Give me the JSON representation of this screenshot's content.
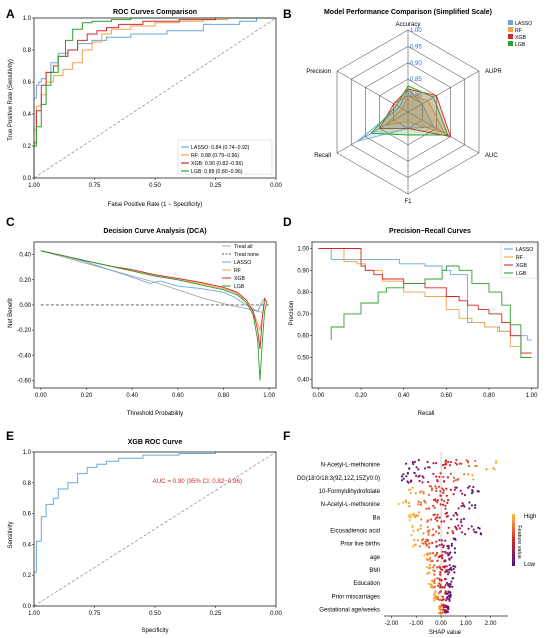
{
  "panels": {
    "A": {
      "label": "A",
      "title": "ROC Curves Comparison",
      "xlabel": "False Positive Rate (1 − Specificity)",
      "ylabel": "True Positive Rate (Sensitivity)"
    },
    "B": {
      "label": "B",
      "title": "Model Performance Comparison (Simplified Scale)"
    },
    "C": {
      "label": "C",
      "title": "Decision Curve Analysis (DCA)",
      "xlabel": "Threshold Probability",
      "ylabel": "Net Benefit"
    },
    "D": {
      "label": "D",
      "title": "Precision−Recall Curves",
      "xlabel": "Recall",
      "ylabel": "Precision"
    },
    "E": {
      "label": "E",
      "title": "XGB ROC Curve",
      "xlabel": "Specificity",
      "ylabel": "Sensitivity",
      "annotation": "AUC = 0.90 (95% CI: 0.82−0.96)"
    },
    "F": {
      "label": "F",
      "xlabel": "SHAP value",
      "colorbar_title": "Feature value",
      "colorbar_high": "High",
      "colorbar_low": "Low"
    }
  },
  "colors": {
    "LASSO": "#6aa9d8",
    "RF": "#f0a24c",
    "XGB": "#d62728",
    "LGB": "#2ca02c",
    "ref": "#888888"
  },
  "chart_data": [
    {
      "id": "A",
      "type": "line",
      "xlim": [
        1.0,
        0.0
      ],
      "ylim": [
        0,
        1
      ],
      "xticks": [
        "1.00",
        "0.75",
        "0.50",
        "0.25",
        "0.00"
      ],
      "yticks": [
        "0.0",
        "0.2",
        "0.4",
        "0.6",
        "0.8",
        "1.0"
      ],
      "legend_position": "bottom-right",
      "legend": [
        "LASSO: 0.84 (0.74−0.92)",
        "RF: 0.88 (0.79−0.96)",
        "XGB: 0.90 (0.82−0.96)",
        "LGB: 0.89 (0.80−0.96)"
      ],
      "series": [
        {
          "name": "LASSO",
          "x": [
            1,
            0.99,
            0.98,
            0.97,
            0.95,
            0.93,
            0.9,
            0.86,
            0.82,
            0.76,
            0.7,
            0.6,
            0.45,
            0.3,
            0.15,
            0.08,
            0
          ],
          "y": [
            0,
            0.5,
            0.58,
            0.6,
            0.62,
            0.66,
            0.72,
            0.78,
            0.8,
            0.84,
            0.86,
            0.88,
            0.9,
            0.92,
            0.96,
            0.98,
            1
          ]
        },
        {
          "name": "RF",
          "x": [
            1,
            0.99,
            0.97,
            0.95,
            0.92,
            0.88,
            0.84,
            0.8,
            0.76,
            0.72,
            0.68,
            0.6,
            0.5,
            0.4,
            0.3,
            0.2,
            0.1,
            0
          ],
          "y": [
            0,
            0.3,
            0.45,
            0.52,
            0.6,
            0.64,
            0.68,
            0.72,
            0.8,
            0.85,
            0.9,
            0.93,
            0.95,
            0.97,
            0.98,
            0.99,
            1,
            1
          ]
        },
        {
          "name": "XGB",
          "x": [
            1,
            0.99,
            0.97,
            0.95,
            0.92,
            0.9,
            0.86,
            0.82,
            0.78,
            0.74,
            0.7,
            0.65,
            0.55,
            0.4,
            0.25,
            0.1,
            0
          ],
          "y": [
            0,
            0.22,
            0.42,
            0.58,
            0.66,
            0.7,
            0.76,
            0.8,
            0.86,
            0.9,
            0.92,
            0.94,
            0.96,
            0.98,
            0.99,
            1,
            1
          ]
        },
        {
          "name": "LGB",
          "x": [
            1,
            0.99,
            0.97,
            0.95,
            0.93,
            0.9,
            0.87,
            0.84,
            0.8,
            0.76,
            0.72,
            0.68,
            0.6,
            0.5,
            0.3,
            0.1,
            0
          ],
          "y": [
            0,
            0.2,
            0.32,
            0.46,
            0.58,
            0.66,
            0.76,
            0.86,
            0.93,
            0.97,
            0.98,
            0.98,
            0.99,
            1,
            1,
            1,
            1
          ]
        }
      ]
    },
    {
      "id": "B",
      "type": "radar",
      "axes": [
        "Accuracy",
        "AUPR",
        "AUC",
        "F1",
        "Recall",
        "Precision"
      ],
      "rings": [
        "0.80",
        "0.85",
        "0.90",
        "0.95",
        "1.00"
      ],
      "rlim": [
        0.75,
        1.0
      ],
      "legend_position": "top-right",
      "series": [
        {
          "name": "LASSO",
          "values": [
            0.82,
            0.8,
            0.84,
            0.8,
            0.93,
            0.78
          ]
        },
        {
          "name": "RF",
          "values": [
            0.8,
            0.82,
            0.88,
            0.78,
            0.83,
            0.77
          ]
        },
        {
          "name": "XGB",
          "values": [
            0.82,
            0.85,
            0.9,
            0.8,
            0.85,
            0.8
          ]
        },
        {
          "name": "LGB",
          "values": [
            0.83,
            0.84,
            0.89,
            0.82,
            0.88,
            0.79
          ]
        }
      ]
    },
    {
      "id": "C",
      "type": "line",
      "xlim": [
        -0.03,
        1.03
      ],
      "ylim": [
        -0.66,
        0.5
      ],
      "xticks": [
        "0.00",
        "0.20",
        "0.40",
        "0.60",
        "0.80",
        "1.00"
      ],
      "yticks": [
        "0.40",
        "0.20",
        "0.00",
        "-0.20",
        "-0.40",
        "-0.60"
      ],
      "legend_position": "top-right",
      "series": [
        {
          "name": "Treat all",
          "x": [
            0,
            0.1,
            0.2,
            0.3,
            0.4,
            0.5,
            0.6,
            0.7,
            0.8,
            0.85,
            0.9,
            0.95,
            0.97
          ],
          "y": [
            0.43,
            0.38,
            0.33,
            0.28,
            0.23,
            0.18,
            0.12,
            0.06,
            0.01,
            -0.01,
            -0.03,
            -0.05,
            -0.06
          ]
        },
        {
          "name": "Treat none",
          "x": [
            0,
            1
          ],
          "y": [
            0,
            0
          ]
        },
        {
          "name": "LASSO",
          "x": [
            0,
            0.1,
            0.2,
            0.3,
            0.4,
            0.48,
            0.52,
            0.6,
            0.7,
            0.8,
            0.85,
            0.88,
            0.9,
            0.93,
            0.95,
            0.97,
            0.98
          ],
          "y": [
            0.43,
            0.39,
            0.34,
            0.28,
            0.22,
            0.17,
            0.19,
            0.15,
            0.13,
            0.1,
            0.06,
            0.02,
            0,
            -0.03,
            -0.05,
            0.03,
            0.05
          ]
        },
        {
          "name": "RF",
          "x": [
            0,
            0.1,
            0.2,
            0.3,
            0.4,
            0.5,
            0.6,
            0.7,
            0.8,
            0.85,
            0.88,
            0.9,
            0.92,
            0.94,
            0.96,
            0.97,
            0.98
          ],
          "y": [
            0.43,
            0.39,
            0.35,
            0.31,
            0.27,
            0.23,
            0.2,
            0.17,
            0.13,
            0.1,
            0.06,
            0.02,
            -0.03,
            -0.1,
            -0.2,
            -0.1,
            0.02
          ]
        },
        {
          "name": "XGB",
          "x": [
            0,
            0.1,
            0.2,
            0.3,
            0.4,
            0.5,
            0.6,
            0.7,
            0.8,
            0.86,
            0.9,
            0.93,
            0.95,
            0.96,
            0.97,
            0.98,
            0.99
          ],
          "y": [
            0.43,
            0.39,
            0.35,
            0.31,
            0.28,
            0.24,
            0.21,
            0.18,
            0.14,
            0.1,
            0.04,
            -0.05,
            -0.2,
            -0.35,
            -0.1,
            0.05,
            0.02
          ]
        },
        {
          "name": "LGB",
          "x": [
            0,
            0.1,
            0.2,
            0.3,
            0.4,
            0.5,
            0.6,
            0.7,
            0.8,
            0.86,
            0.9,
            0.93,
            0.95,
            0.96,
            0.97,
            0.98,
            0.99
          ],
          "y": [
            0.43,
            0.39,
            0.35,
            0.31,
            0.27,
            0.23,
            0.2,
            0.16,
            0.12,
            0.08,
            0.02,
            -0.08,
            -0.28,
            -0.6,
            -0.3,
            -0.05,
            0.03
          ]
        }
      ]
    },
    {
      "id": "D",
      "type": "line",
      "xlim": [
        -0.03,
        1.03
      ],
      "ylim": [
        0.36,
        1.03
      ],
      "xticks": [
        "0.00",
        "0.20",
        "0.40",
        "0.60",
        "0.80",
        "1.00"
      ],
      "yticks": [
        "1.00",
        "0.90",
        "0.80",
        "0.70",
        "0.60",
        "0.50",
        "0.40"
      ],
      "legend_position": "top-right",
      "series": [
        {
          "name": "LASSO",
          "x": [
            0,
            0.04,
            0.06,
            0.08,
            0.38,
            0.42,
            0.5,
            0.58,
            0.62,
            0.7,
            0.78,
            0.85,
            0.9,
            0.95,
            0.98,
            1
          ],
          "y": [
            1,
            1,
            1,
            0.95,
            0.95,
            0.93,
            0.93,
            0.92,
            0.9,
            0.88,
            0.66,
            0.64,
            0.62,
            0.6,
            0.6,
            0.58
          ]
        },
        {
          "name": "RF",
          "x": [
            0,
            0.06,
            0.12,
            0.18,
            0.22,
            0.3,
            0.4,
            0.5,
            0.6,
            0.66,
            0.72,
            0.78,
            0.84,
            0.9,
            0.95,
            1
          ],
          "y": [
            1,
            1,
            1,
            0.94,
            0.93,
            0.9,
            0.85,
            0.8,
            0.78,
            0.72,
            0.68,
            0.66,
            0.64,
            0.62,
            0.55,
            0.52
          ]
        },
        {
          "name": "XGB",
          "x": [
            0,
            0.2,
            0.22,
            0.26,
            0.3,
            0.4,
            0.5,
            0.6,
            0.66,
            0.7,
            0.75,
            0.8,
            0.86,
            0.9,
            0.95,
            1
          ],
          "y": [
            1,
            1,
            0.92,
            0.9,
            0.88,
            0.86,
            0.84,
            0.82,
            0.78,
            0.76,
            0.74,
            0.72,
            0.7,
            0.66,
            0.6,
            0.52
          ]
        },
        {
          "name": "LGB",
          "x": [
            0.06,
            0.12,
            0.2,
            0.28,
            0.32,
            0.4,
            0.5,
            0.58,
            0.6,
            0.66,
            0.72,
            0.8,
            0.86,
            0.9,
            0.95,
            1
          ],
          "y": [
            0.58,
            0.64,
            0.7,
            0.75,
            0.8,
            0.82,
            0.84,
            0.86,
            0.9,
            0.92,
            0.9,
            0.84,
            0.8,
            0.74,
            0.65,
            0.5
          ]
        }
      ]
    },
    {
      "id": "E",
      "type": "line",
      "xlim": [
        1.0,
        0.0
      ],
      "ylim": [
        0,
        1
      ],
      "xticks": [
        "1.00",
        "0.75",
        "0.50",
        "0.25",
        "0.00"
      ],
      "yticks": [
        "0.0",
        "0.2",
        "0.4",
        "0.6",
        "0.8",
        "1.0"
      ],
      "series": [
        {
          "name": "XGB",
          "x": [
            1,
            0.99,
            0.97,
            0.95,
            0.92,
            0.9,
            0.86,
            0.82,
            0.78,
            0.74,
            0.7,
            0.65,
            0.55,
            0.4,
            0.25,
            0.1,
            0
          ],
          "y": [
            0,
            0.22,
            0.42,
            0.58,
            0.66,
            0.7,
            0.76,
            0.8,
            0.86,
            0.9,
            0.92,
            0.94,
            0.96,
            0.98,
            0.99,
            1,
            1
          ]
        }
      ]
    },
    {
      "id": "F",
      "type": "scatter",
      "xlim": [
        -2.3,
        2.7
      ],
      "xticks": [
        "-2.00",
        "-1.00",
        "0.00",
        "1.00",
        "2.00"
      ],
      "features": [
        "N-Acetyl-L-methionine",
        "DG(18:0/18:3(9Z,12Z,15Z)/0:0)",
        "10-Formyldihydrofolate",
        "N-Acetyl-L-methionine",
        "Ba",
        "Eicosadienoic acid",
        "Prior live births",
        "age",
        "BMI",
        "Education",
        "Prior miscarriages",
        "Gestational age/weeks"
      ],
      "spread": [
        [
          -1.6,
          2.4
        ],
        [
          -1.6,
          1.6
        ],
        [
          -1.4,
          1.6
        ],
        [
          -1.7,
          1.5
        ],
        [
          -1.3,
          1.2
        ],
        [
          -1.2,
          1.7
        ],
        [
          -1.2,
          0.6
        ],
        [
          -0.7,
          0.6
        ],
        [
          -0.6,
          0.6
        ],
        [
          -0.5,
          0.5
        ],
        [
          -0.3,
          0.4
        ],
        [
          -0.1,
          0.3
        ]
      ]
    }
  ]
}
